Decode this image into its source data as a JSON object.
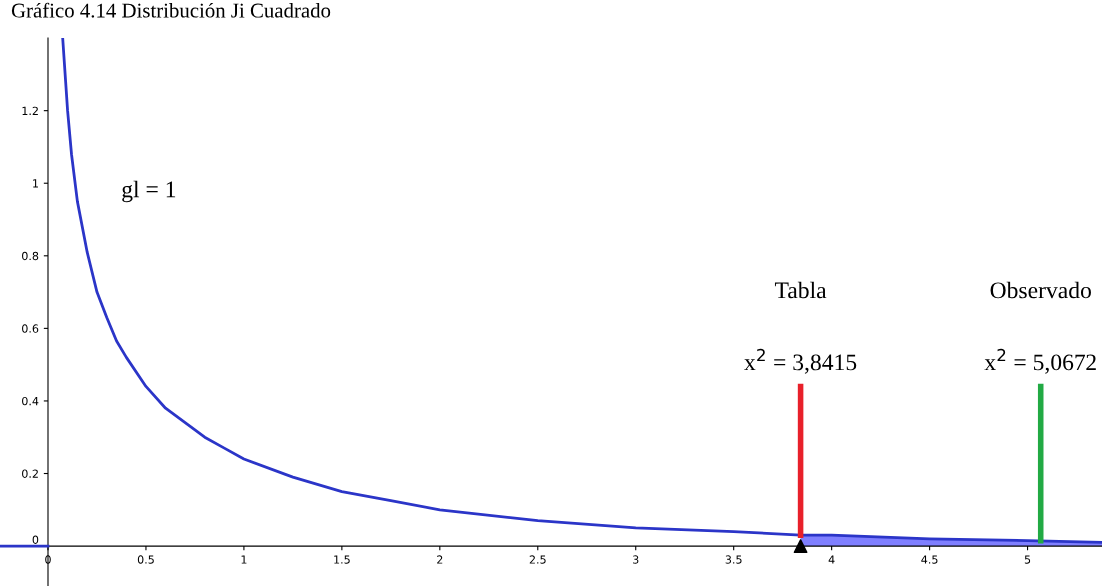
{
  "chart_data": {
    "type": "line",
    "title": "Gráfico 4.14 Distribución Ji Cuadrado",
    "xlim": [
      -0.245,
      5.38
    ],
    "ylim": [
      -0.11,
      1.4
    ],
    "xticks": [
      0,
      0.5,
      1,
      1.5,
      2,
      2.5,
      3,
      3.5,
      4,
      4.5,
      5
    ],
    "yticks": [
      0,
      0.2,
      0.4,
      0.6,
      0.8,
      1,
      1.2
    ],
    "grid": false,
    "legend": false,
    "series": [
      {
        "color": "#2b35c8",
        "x": [
          -0.24,
          0,
          0.04,
          0.075,
          0.09,
          0.1,
          0.12,
          0.15,
          0.2,
          0.25,
          0.3,
          0.35,
          0.4,
          0.5,
          0.6,
          0.7,
          0.8,
          0.9,
          1,
          1.25,
          1.5,
          1.75,
          2,
          2.5,
          3,
          3.5,
          3.8415,
          4,
          4.5,
          5,
          5.38
        ],
        "values": [
          0,
          0,
          null,
          1.4,
          1.28,
          1.2,
          1.08,
          0.95,
          0.81,
          0.7,
          0.63,
          0.565,
          0.52,
          0.44,
          0.38,
          0.34,
          0.3,
          0.27,
          0.24,
          0.19,
          0.15,
          0.125,
          0.1,
          0.07,
          0.05,
          0.04,
          0.03,
          0.03,
          0.02,
          0.015,
          0.01
        ]
      },
      {
        "type": "area",
        "color": "#7f7fff",
        "x": [
          3.8415,
          4,
          4.5,
          5,
          5.38
        ],
        "values": [
          0.03,
          0.03,
          0.02,
          0.015,
          0.01
        ]
      },
      {
        "color": "#e8202a",
        "x": [
          3.8415,
          3.8415
        ],
        "values": [
          0.03,
          0.44
        ]
      },
      {
        "color": "#22aa44",
        "x": [
          5.0672,
          5.0672
        ],
        "values": [
          0.015,
          0.44
        ]
      },
      {
        "type": "scatter",
        "marker": "triangle",
        "color": "#000000",
        "x": [
          3.8415
        ],
        "values": [
          0
        ]
      }
    ],
    "annotations": [
      "gl = 1",
      "Tabla",
      {
        "text": "x$^{2}$ = 3,8415",
        "x": 3.8415,
        "y": 0.44
      },
      "Observado",
      {
        "text": "x$^{2}$ = 5,0672",
        "x": 5.0672,
        "y": 0.44
      }
    ]
  }
}
